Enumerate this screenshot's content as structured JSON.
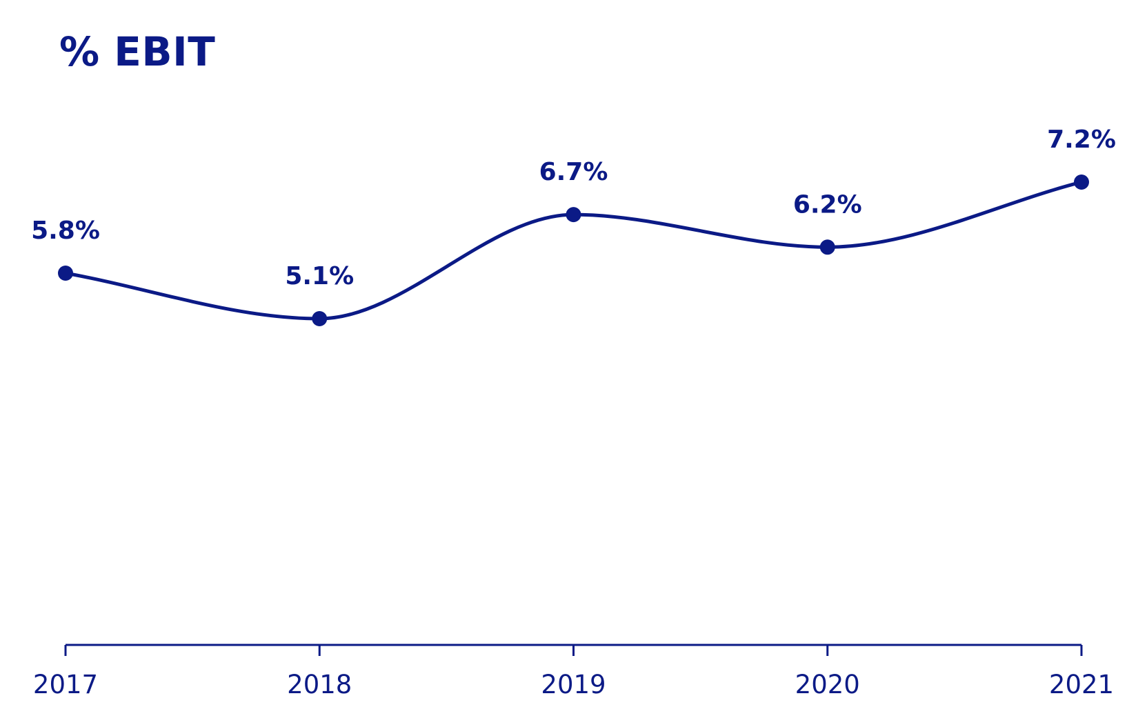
{
  "chart_data": {
    "type": "line",
    "title": "% EBIT",
    "categories": [
      "2017",
      "2018",
      "2019",
      "2020",
      "2021"
    ],
    "values": [
      5.8,
      5.1,
      6.7,
      6.2,
      7.2
    ],
    "data_labels": [
      "5.8%",
      "5.1%",
      "6.7%",
      "6.2%",
      "7.2%"
    ],
    "xlabel": "",
    "ylabel": "",
    "grid": false,
    "legend": "none",
    "line_style": "smooth",
    "color": "#0b1a86"
  }
}
